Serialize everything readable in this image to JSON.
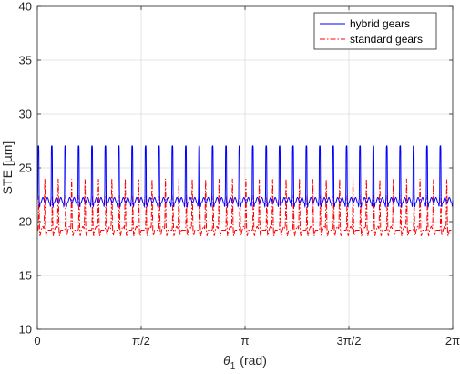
{
  "chart_data": {
    "type": "line",
    "title": "",
    "xlabel": "θ1 (rad)",
    "xlabel_main": "θ",
    "xlabel_sub": "1",
    "xlabel_unit": "(rad)",
    "ylabel": "STE [µm]",
    "xlim": [
      0,
      6.2832
    ],
    "ylim": [
      10,
      40
    ],
    "xticks": [
      0,
      1.5708,
      3.1416,
      4.7124,
      6.2832
    ],
    "xticklabels": [
      "0",
      "π/2",
      "π",
      "3π/2",
      "2π"
    ],
    "yticks": [
      10,
      15,
      20,
      25,
      30,
      35,
      40
    ],
    "yticklabels": [
      "10",
      "15",
      "20",
      "25",
      "30",
      "35",
      "40"
    ],
    "grid": true,
    "legend_position": "top-right",
    "mesh_cycles": 31,
    "series": [
      {
        "name": "hybrid gears",
        "color": "#0000ff",
        "linestyle": "solid",
        "baseline_um": 22.0,
        "peak_um": 26.8,
        "trough_um": 21.4
      },
      {
        "name": "standard gears",
        "color": "#ff0000",
        "linestyle": "dashdot",
        "baseline_um": 19.2,
        "peak_um": 24.0,
        "secondary_peak_um": 22.5,
        "trough_um": 18.7
      }
    ]
  }
}
